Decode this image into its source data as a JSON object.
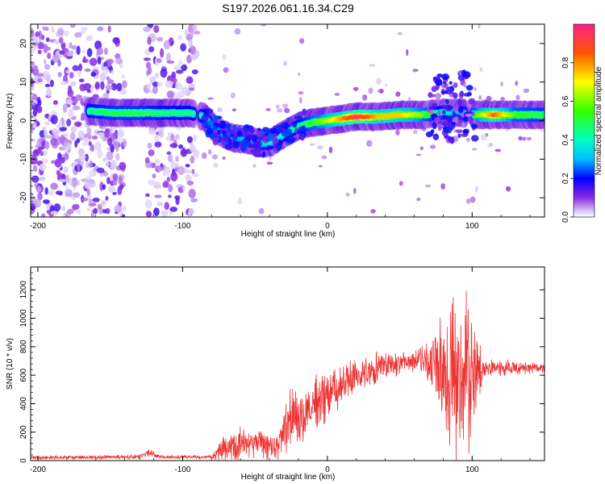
{
  "title": "S197.2026.061.16.34.C29",
  "chart_data": [
    {
      "type": "heatmap",
      "name": "spectrogram",
      "xlabel": "Height of straight line (km)",
      "ylabel": "Frequency (Hz)",
      "xlim": [
        -205,
        150
      ],
      "ylim": [
        -25,
        25
      ],
      "xticks": [
        -200,
        -100,
        0,
        100
      ],
      "yticks": [
        -20,
        -10,
        0,
        10,
        20
      ],
      "colorbar": {
        "label": "Normalized spectral amplitude",
        "range": [
          0,
          1
        ],
        "ticks": [
          "0.0",
          "0.2",
          "0.4",
          "0.6",
          "0.8"
        ],
        "tick_values": [
          0.0,
          0.2,
          0.4,
          0.6,
          0.8
        ]
      },
      "noise_regions": [
        {
          "x0": -205,
          "x1": -140,
          "density": 0.75
        },
        {
          "x0": -125,
          "x1": -90,
          "density": 0.6
        }
      ],
      "ridge": [
        {
          "x": -165,
          "y": 2.5,
          "v": 0.45
        },
        {
          "x": -150,
          "y": 2.0,
          "v": 0.5
        },
        {
          "x": -130,
          "y": 2.0,
          "v": 0.5
        },
        {
          "x": -110,
          "y": 2.0,
          "v": 0.45
        },
        {
          "x": -95,
          "y": 2.0,
          "v": 0.45
        },
        {
          "x": -85,
          "y": 1.0,
          "v": 0.4
        },
        {
          "x": -78,
          "y": -2.0,
          "v": 0.35
        },
        {
          "x": -72,
          "y": -3.5,
          "v": 0.3
        },
        {
          "x": -65,
          "y": -4.5,
          "v": 0.3
        },
        {
          "x": -55,
          "y": -5.0,
          "v": 0.3
        },
        {
          "x": -45,
          "y": -6.0,
          "v": 0.35
        },
        {
          "x": -38,
          "y": -5.5,
          "v": 0.4
        },
        {
          "x": -30,
          "y": -3.5,
          "v": 0.4
        },
        {
          "x": -20,
          "y": -1.5,
          "v": 0.45
        },
        {
          "x": -10,
          "y": -0.5,
          "v": 0.55
        },
        {
          "x": 0,
          "y": 0.0,
          "v": 0.65
        },
        {
          "x": 10,
          "y": 0.5,
          "v": 0.8
        },
        {
          "x": 20,
          "y": 1.0,
          "v": 0.95
        },
        {
          "x": 35,
          "y": 1.0,
          "v": 0.75
        },
        {
          "x": 50,
          "y": 1.5,
          "v": 0.75
        },
        {
          "x": 65,
          "y": 1.5,
          "v": 0.6
        },
        {
          "x": 80,
          "y": 2.0,
          "v": 0.4
        },
        {
          "x": 92,
          "y": 2.0,
          "v": 0.3
        },
        {
          "x": 102,
          "y": 1.5,
          "v": 0.55
        },
        {
          "x": 115,
          "y": 1.5,
          "v": 0.85
        },
        {
          "x": 130,
          "y": 1.5,
          "v": 0.55
        },
        {
          "x": 150,
          "y": 1.5,
          "v": 0.5
        }
      ],
      "gap_x": [
        -92,
        100
      ]
    },
    {
      "type": "line",
      "name": "snr-trace",
      "xlabel": "Height of straight line (km)",
      "ylabel": "SNR (10 * v/v)",
      "xlim": [
        -205,
        150
      ],
      "ylim": [
        0,
        1360
      ],
      "xticks": [
        -200,
        -100,
        0,
        100
      ],
      "yticks": [
        0,
        200,
        400,
        600,
        800,
        1000,
        1200
      ],
      "color": "#ee3333",
      "envelope": [
        {
          "x": -205,
          "base": 20,
          "amp": 15
        },
        {
          "x": -130,
          "base": 25,
          "amp": 20
        },
        {
          "x": -122,
          "base": 60,
          "amp": 30
        },
        {
          "x": -115,
          "base": 25,
          "amp": 15
        },
        {
          "x": -80,
          "base": 25,
          "amp": 15
        },
        {
          "x": -72,
          "base": 90,
          "amp": 120
        },
        {
          "x": -55,
          "base": 120,
          "amp": 140
        },
        {
          "x": -35,
          "base": 120,
          "amp": 120
        },
        {
          "x": -25,
          "base": 300,
          "amp": 250
        },
        {
          "x": -10,
          "base": 380,
          "amp": 250
        },
        {
          "x": 10,
          "base": 530,
          "amp": 160
        },
        {
          "x": 30,
          "base": 640,
          "amp": 130
        },
        {
          "x": 60,
          "base": 700,
          "amp": 80
        },
        {
          "x": 75,
          "base": 690,
          "amp": 250
        },
        {
          "x": 85,
          "base": 600,
          "amp": 700
        },
        {
          "x": 100,
          "base": 600,
          "amp": 600
        },
        {
          "x": 108,
          "base": 660,
          "amp": 80
        },
        {
          "x": 150,
          "base": 650,
          "amp": 40
        }
      ]
    }
  ]
}
